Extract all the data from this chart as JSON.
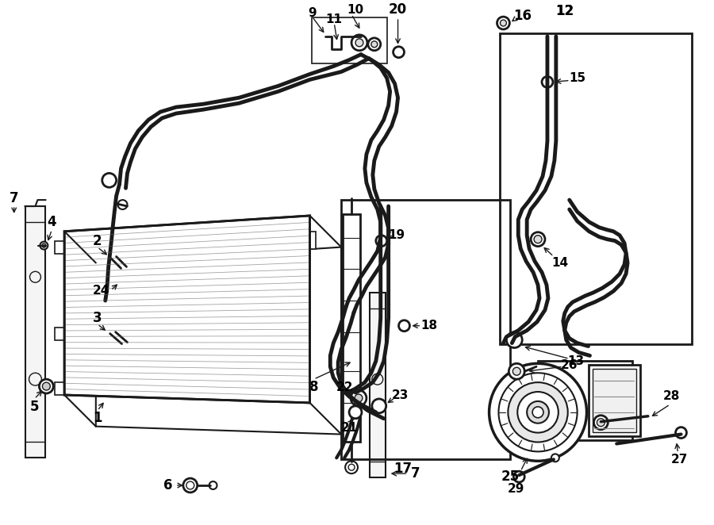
{
  "bg_color": "#ffffff",
  "line_color": "#1a1a1a",
  "text_color": "#000000",
  "fig_width": 9.0,
  "fig_height": 6.62,
  "dpi": 100
}
